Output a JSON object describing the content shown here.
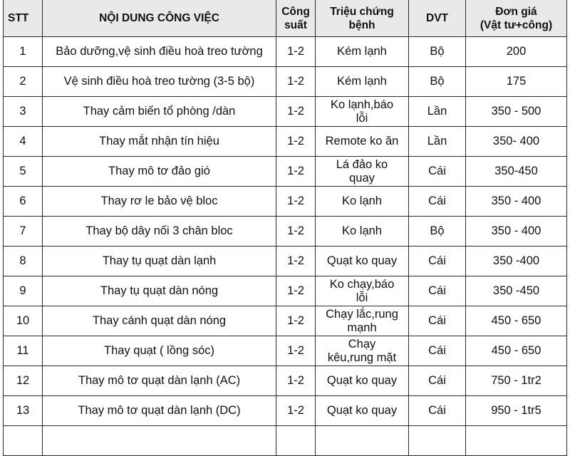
{
  "headers": {
    "stt": "STT",
    "desc": "NỘI DUNG CÔNG VIỆC",
    "capacity_line1": "Công",
    "capacity_line2": "suất",
    "symptom_line1": "Triệu chứng",
    "symptom_line2": "bệnh",
    "unit": "DVT",
    "price_line1": "Đơn giá",
    "price_line2": "(Vật tư+công)"
  },
  "rows": [
    {
      "stt": "1",
      "desc": "Bảo dưỡng,vệ sinh điều hoà treo tường",
      "capacity": "1-2",
      "symptom_l1": "Kém lạnh",
      "symptom_l2": "",
      "unit": "Bộ",
      "price": "200"
    },
    {
      "stt": "2",
      "desc": "Vệ sinh điều hoà treo tường (3-5 bộ)",
      "capacity": "1-2",
      "symptom_l1": "Kém lạnh",
      "symptom_l2": "",
      "unit": "Bộ",
      "price": "175"
    },
    {
      "stt": "3",
      "desc": "Thay cảm biến tổ phòng /dàn",
      "capacity": "1-2",
      "symptom_l1": "Ko lạnh,báo",
      "symptom_l2": "lỗi",
      "unit": "Lần",
      "price": "350 - 500"
    },
    {
      "stt": "4",
      "desc": "Thay mắt nhận tín hiệu",
      "capacity": "1-2",
      "symptom_l1": "Remote ko ăn",
      "symptom_l2": "",
      "unit": "Lần",
      "price": "350- 400"
    },
    {
      "stt": "5",
      "desc": "Thay mô tơ đảo gió",
      "capacity": "1-2",
      "symptom_l1": "Lá đảo ko",
      "symptom_l2": "quay",
      "unit": "Cái",
      "price": "350-450"
    },
    {
      "stt": "6",
      "desc": "Thay rơ le  bảo vệ bloc",
      "capacity": "1-2",
      "symptom_l1": "Ko lạnh",
      "symptom_l2": "",
      "unit": "Cái",
      "price": "350 - 400"
    },
    {
      "stt": "7",
      "desc": "Thay bộ dây nối 3 chân bloc",
      "capacity": "1-2",
      "symptom_l1": "Ko lạnh",
      "symptom_l2": "",
      "unit": "Bộ",
      "price": "350 - 400"
    },
    {
      "stt": "8",
      "desc": "Thay tụ quạt dàn lạnh",
      "capacity": "1-2",
      "symptom_l1": "Quạt ko quay",
      "symptom_l2": "",
      "unit": "Cái",
      "price": "350 -400"
    },
    {
      "stt": "9",
      "desc": "Thay tụ quạt dàn nóng",
      "capacity": "1-2",
      "symptom_l1": "Ko chạy,báo",
      "symptom_l2": "lỗi",
      "unit": "Cái",
      "price": "350 -450"
    },
    {
      "stt": "10",
      "desc": "Thay cánh quạt dàn nóng",
      "capacity": "1-2",
      "symptom_l1": "Chạy lắc,rung",
      "symptom_l2": "mạnh",
      "unit": "Cái",
      "price": "450 - 650"
    },
    {
      "stt": "11",
      "desc": "Thay quạt ( lồng sóc)",
      "capacity": "1-2",
      "symptom_l1": "Chạy",
      "symptom_l2": "kêu,rung mặt",
      "unit": "Cái",
      "price": "450 - 650"
    },
    {
      "stt": "12",
      "desc": "Thay mô tơ quạt dàn lạnh (AC)",
      "capacity": "1-2",
      "symptom_l1": "Quạt ko quay",
      "symptom_l2": "",
      "unit": "Cái",
      "price": "750 - 1tr2"
    },
    {
      "stt": "13",
      "desc": "Thay mô tơ quạt dàn lạnh (DC)",
      "capacity": "1-2",
      "symptom_l1": "Quạt ko quay",
      "symptom_l2": "",
      "unit": "Cái",
      "price": "950 - 1tr5"
    }
  ]
}
